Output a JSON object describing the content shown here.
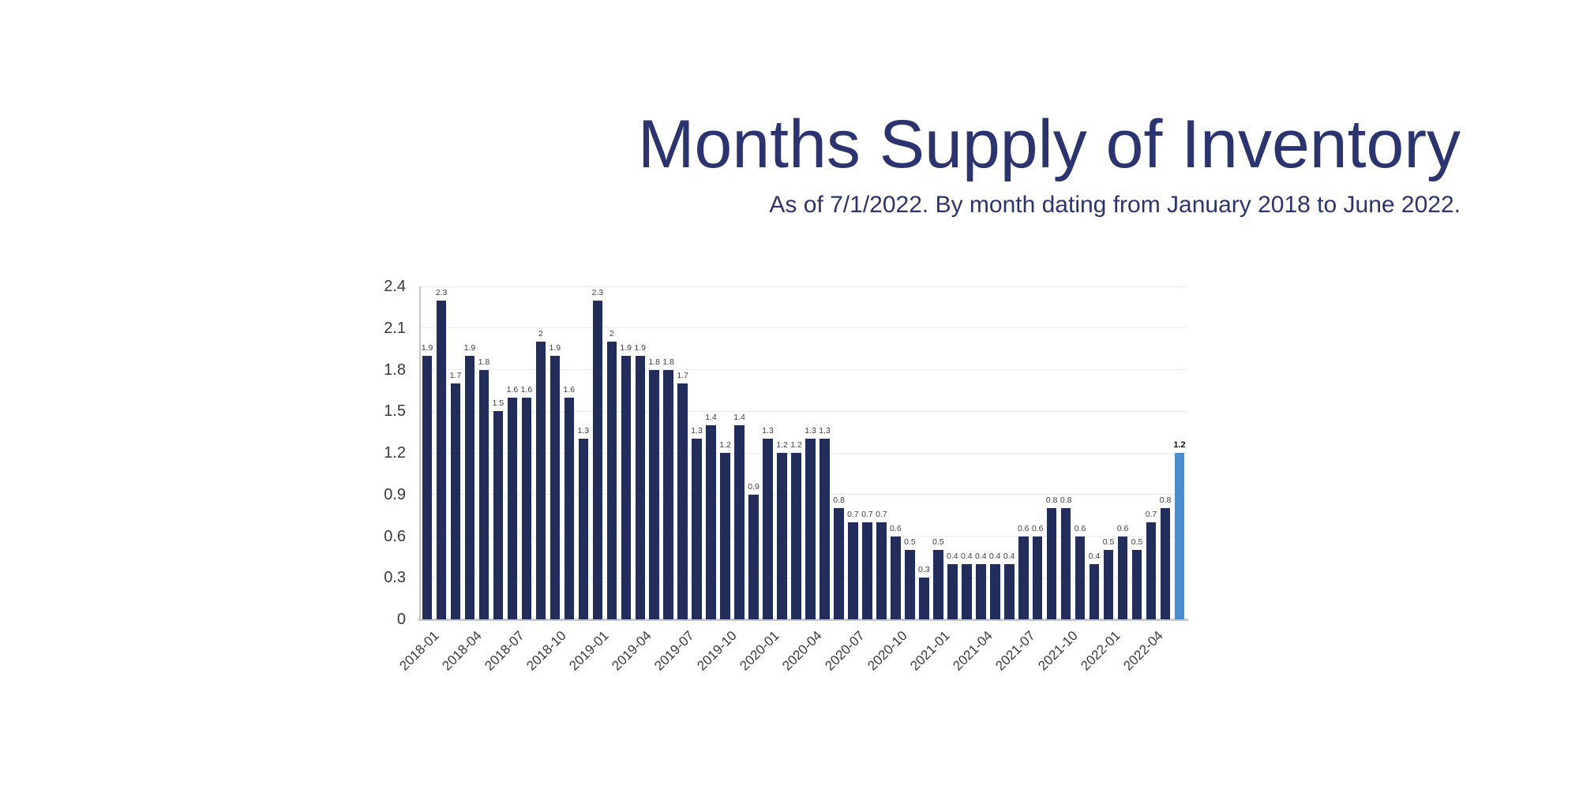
{
  "header": {
    "title": "Months Supply of Inventory",
    "subtitle": "As of 7/1/2022. By month dating from January 2018 to June 2022."
  },
  "colors": {
    "title_text": "#2b3470",
    "bar": "#232d5c",
    "highlight_bar": "#4b8ed0",
    "value_label": "#3f3f3f",
    "axis_label": "#3a3a3a",
    "gridline": "#eaeaee",
    "axis_line": "#c9c9c9"
  },
  "chart_data": {
    "type": "bar",
    "title": "Months Supply of Inventory",
    "subtitle": "As of 7/1/2022. By month dating from January 2018 to June 2022.",
    "xlabel": "",
    "ylabel": "",
    "ylim": [
      0,
      2.4
    ],
    "y_ticks": [
      0,
      0.3,
      0.6,
      0.9,
      1.2,
      1.5,
      1.8,
      2.1,
      2.4
    ],
    "grid": "horizontal",
    "legend": "none",
    "x": [
      "2018-01",
      "2018-02",
      "2018-03",
      "2018-04",
      "2018-05",
      "2018-06",
      "2018-07",
      "2018-08",
      "2018-09",
      "2018-10",
      "2018-11",
      "2018-12",
      "2019-01",
      "2019-02",
      "2019-03",
      "2019-04",
      "2019-05",
      "2019-06",
      "2019-07",
      "2019-08",
      "2019-09",
      "2019-10",
      "2019-11",
      "2019-12",
      "2020-01",
      "2020-02",
      "2020-03",
      "2020-04",
      "2020-05",
      "2020-06",
      "2020-07",
      "2020-08",
      "2020-09",
      "2020-10",
      "2020-11",
      "2020-12",
      "2021-01",
      "2021-02",
      "2021-03",
      "2021-04",
      "2021-05",
      "2021-06",
      "2021-07",
      "2021-08",
      "2021-09",
      "2021-10",
      "2021-11",
      "2021-12",
      "2022-01",
      "2022-02",
      "2022-03",
      "2022-04",
      "2022-05",
      "2022-06"
    ],
    "values": [
      1.9,
      2.3,
      1.7,
      1.9,
      1.8,
      1.5,
      1.6,
      1.6,
      2,
      1.9,
      1.6,
      1.3,
      2.3,
      2,
      1.9,
      1.9,
      1.8,
      1.8,
      1.7,
      1.3,
      1.4,
      1.2,
      1.4,
      0.9,
      1.3,
      1.2,
      1.2,
      1.3,
      1.3,
      0.8,
      0.7,
      0.7,
      0.7,
      0.6,
      0.5,
      0.3,
      0.5,
      0.4,
      0.4,
      0.4,
      0.4,
      0.4,
      0.6,
      0.6,
      0.8,
      0.8,
      0.6,
      0.4,
      0.5,
      0.6,
      0.5,
      0.7,
      0.8,
      1.2
    ],
    "x_tick_labels": [
      "2018-01",
      "2018-04",
      "2018-07",
      "2018-10",
      "2019-01",
      "2019-04",
      "2019-07",
      "2019-10",
      "2020-01",
      "2020-04",
      "2020-07",
      "2020-10",
      "2021-01",
      "2021-04",
      "2021-07",
      "2021-10",
      "2022-01",
      "2022-04"
    ],
    "x_tick_every": 3,
    "highlight_index": 53,
    "highlight_value_label_bold": true,
    "data_labels": "above-bars"
  }
}
